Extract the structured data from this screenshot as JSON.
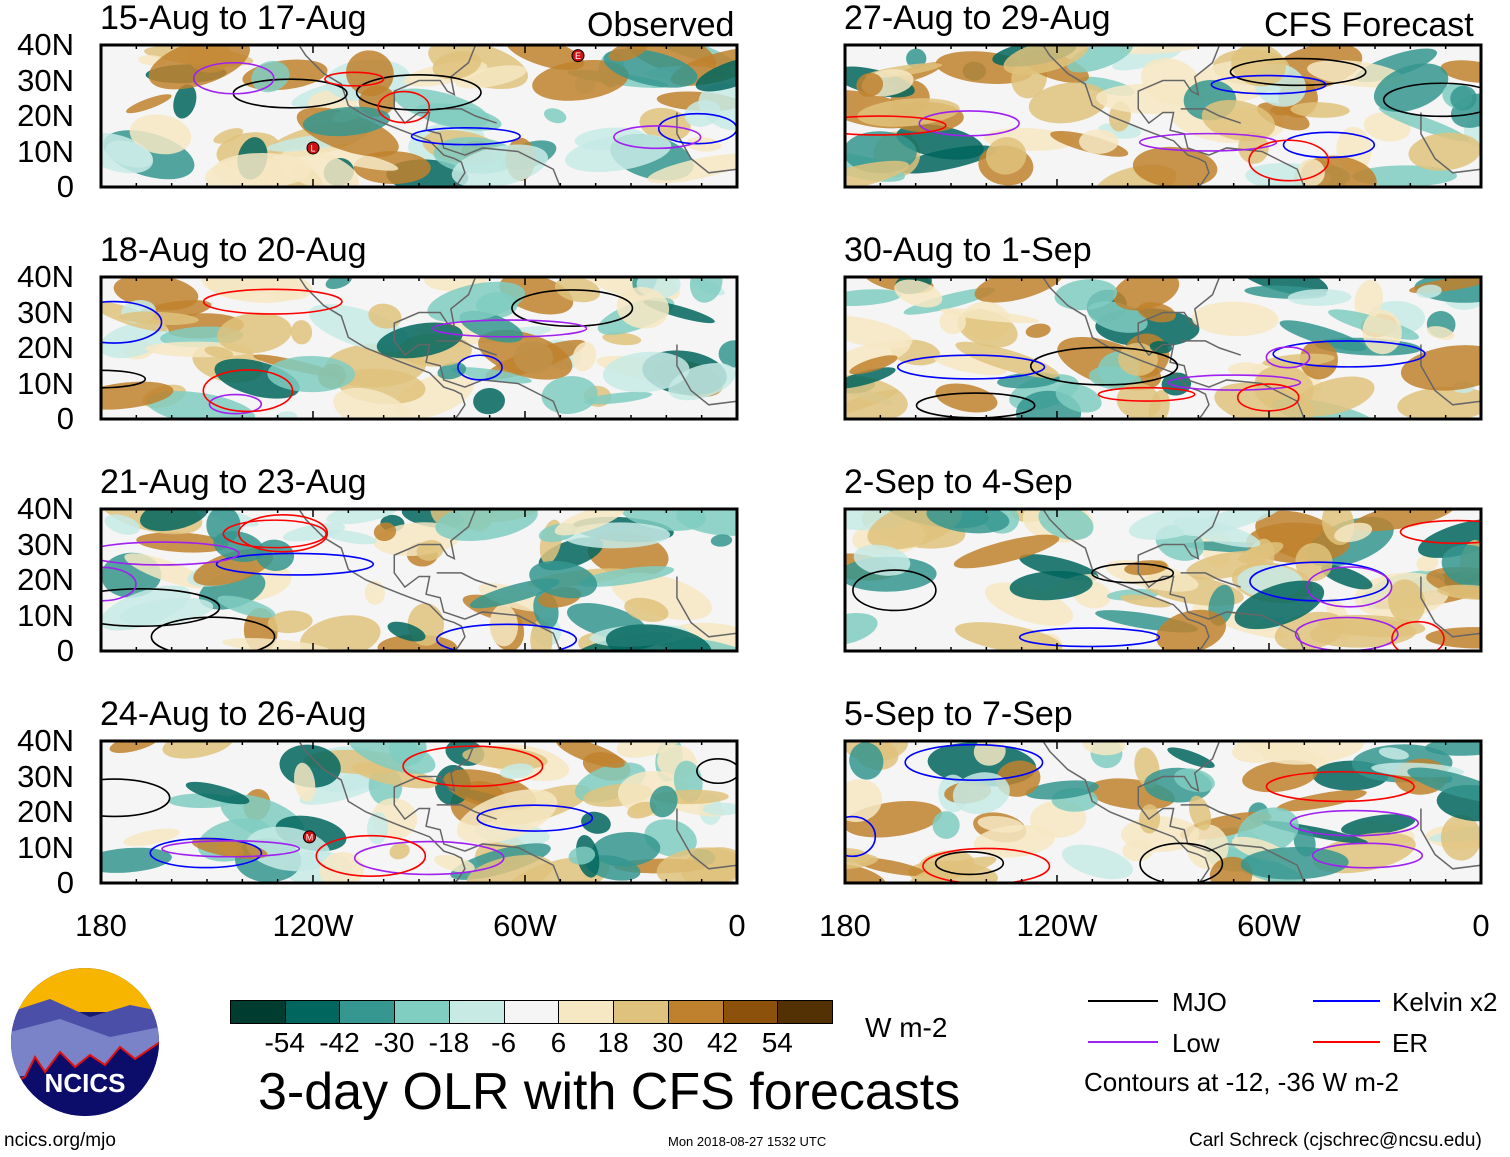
{
  "chart_data": {
    "type": "heatmap",
    "title": "3-day OLR with CFS forecasts",
    "units": "W m-2",
    "columns": [
      {
        "label": "Observed",
        "panels": [
          "15-Aug to 17-Aug",
          "18-Aug to 20-Aug",
          "21-Aug to 23-Aug",
          "24-Aug to 26-Aug"
        ]
      },
      {
        "label": "CFS Forecast",
        "panels": [
          "27-Aug to 29-Aug",
          "30-Aug to 1-Sep",
          "2-Sep to 4-Sep",
          "5-Sep to 7-Sep"
        ]
      }
    ],
    "lat_ticks": [
      "40N",
      "30N",
      "20N",
      "10N",
      "0"
    ],
    "lon_ticks": [
      "180",
      "120W",
      "60W",
      "0"
    ],
    "lat_range": [
      0,
      40
    ],
    "lon_range": [
      -180,
      0
    ],
    "colorbar": {
      "ticks": [
        "-54",
        "-42",
        "-30",
        "-18",
        "-6",
        "6",
        "18",
        "30",
        "42",
        "54"
      ],
      "colors": [
        "#003c30",
        "#01665e",
        "#35978f",
        "#80cdc1",
        "#c7eae5",
        "#f5f5f5",
        "#f6e8c3",
        "#dfc27d",
        "#bf812d",
        "#8c510a",
        "#543005"
      ]
    },
    "legend": [
      {
        "label": "MJO",
        "color": "#000000"
      },
      {
        "label": "Kelvin x2",
        "color": "#0000ff"
      },
      {
        "label": "Low",
        "color": "#a020f0"
      },
      {
        "label": "ER",
        "color": "#ff0000"
      }
    ],
    "contour_note": "Contours at -12, -36 W m-2",
    "storms": [
      {
        "panel": 0,
        "label": "L",
        "lon": -120,
        "lat": 11
      },
      {
        "panel": 0,
        "label": "E",
        "lon": -45,
        "lat": 37
      },
      {
        "panel": 3,
        "label": "M",
        "lon": -121,
        "lat": 13
      }
    ]
  },
  "footer": {
    "logo_text": "NCICS",
    "url": "ncics.org/mjo",
    "timestamp": "Mon 2018-08-27 1532 UTC",
    "author": "Carl Schreck (cjschrec@ncsu.edu)"
  }
}
